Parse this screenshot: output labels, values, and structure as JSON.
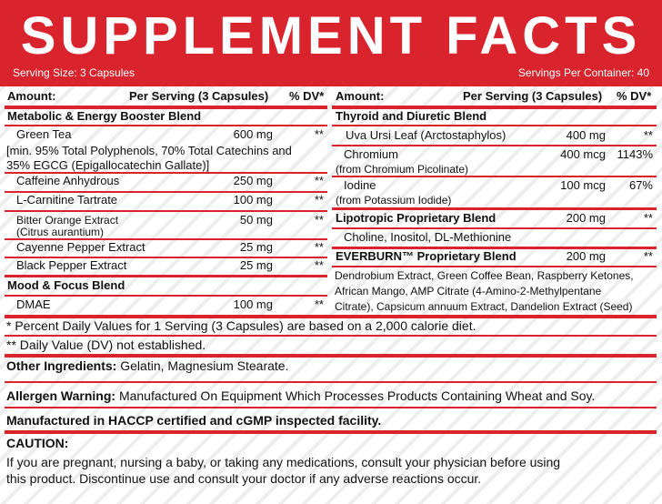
{
  "header": {
    "title": "SUPPLEMENT FACTS",
    "serving_size": "Serving Size: 3 Capsules",
    "servings_per_container": "Servings Per Container: 40"
  },
  "left_panel": {
    "columns": {
      "amount": "Amount:",
      "per_serving": "Per Serving (3 Capsules)",
      "dv": "% DV*"
    },
    "rows": [
      {
        "name": "Metabolic & Energy Booster Blend"
      },
      {
        "name": "Green Tea",
        "amount": "600 mg",
        "dv": "**"
      },
      {
        "lines": [
          "[min. 95% Total Polyphenols, 70% Total Catechins and",
          "35% EGCG (Epigallocatechin Gallate)]"
        ]
      },
      {
        "name": "Caffeine Anhydrous",
        "amount": "250 mg",
        "dv": "**"
      },
      {
        "name": "L-Carnitine Tartrate",
        "amount": "100 mg",
        "dv": "**"
      },
      {
        "name": "Bitter Orange Extract",
        "sub": "(Citrus aurantium)",
        "amount": "50 mg",
        "dv": "**"
      },
      {
        "name": "Cayenne Pepper Extract",
        "amount": "25 mg",
        "dv": "**"
      },
      {
        "name": "Black Pepper Extract",
        "amount": "25 mg",
        "dv": "**"
      },
      {
        "name": "Mood & Focus Blend"
      },
      {
        "name": "DMAE",
        "amount": "100 mg",
        "dv": "**"
      }
    ]
  },
  "right_panel": {
    "columns": {
      "amount": "Amount:",
      "per_serving": "Per Serving (3 Capsules)",
      "dv": "% DV*"
    },
    "rows": [
      {
        "name": "Thyroid and Diuretic Blend"
      },
      {
        "name": "Uva Ursi Leaf (Arctostaphylos)",
        "amount": "400 mg",
        "dv": "**"
      },
      {
        "name": "Chromium",
        "sub": "(from Chromium Picolinate)",
        "amount": "400 mcg",
        "dv": "1143%"
      },
      {
        "name": "Iodine",
        "sub": "(from Potassium Iodide)",
        "amount": "100 mcg",
        "dv": "67%"
      },
      {
        "name": "Lipotropic Proprietary Blend",
        "amount": "200 mg",
        "dv": "**"
      },
      {
        "name": "Choline, Inositol, DL-Methionine"
      },
      {
        "name": "EVERBURN™ Proprietary Blend",
        "amount": "200 mg",
        "dv": "**"
      },
      {
        "lines": [
          "Dendrobium Extract, Green Coffee Bean, Raspberry Ketones,",
          "African Mango, AMP Citrate (4-Amino-2-Methylpentane",
          "Citrate), Capsicum annuum Extract, Dandelion Extract (Seed)"
        ]
      }
    ]
  },
  "footnotes": [
    "* Percent Daily Values for 1 Serving (3 Capsules) are based on a 2,000 calorie diet.",
    "** Daily Value (DV) not established."
  ],
  "other_ingredients": {
    "label": "Other Ingredients:",
    "text": "Gelatin, Magnesium Stearate."
  },
  "allergen_warning": {
    "label": "Allergen Warning:",
    "text": "Manufactured On Equipment Which Processes Products Containing Wheat and Soy."
  },
  "facility": "Manufactured in HACCP certified and cGMP inspected facility.",
  "caution": {
    "label": "CAUTION:",
    "lines": [
      "If you are pregnant, nursing a baby, or taking any medications, consult your physician before using",
      "this product. Discontinue use and consult your doctor if any adverse reactions occur."
    ]
  }
}
